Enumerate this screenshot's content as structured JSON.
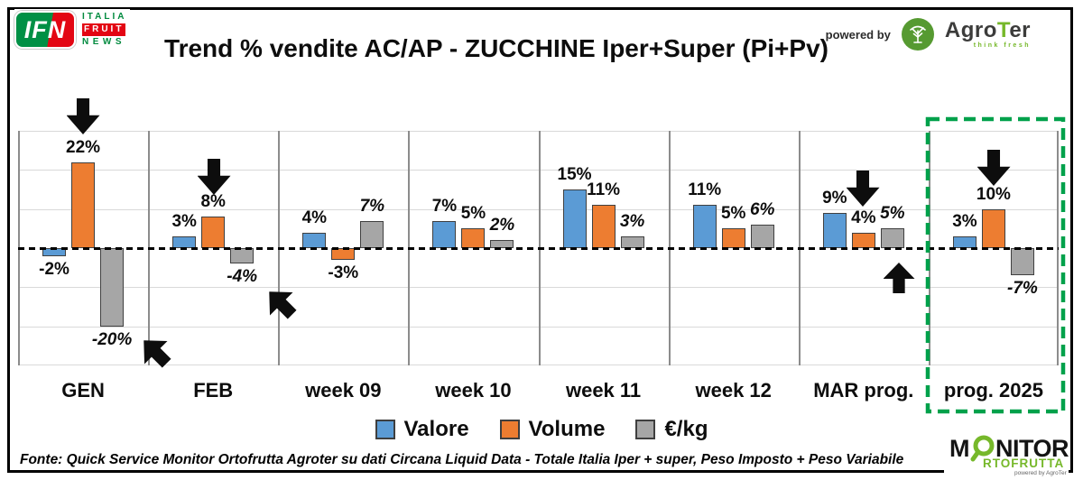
{
  "header": {
    "ifn_logo": {
      "abbr": "IFN",
      "word1": "ITALIA",
      "word2": "FRUIT",
      "word3": "NEWS"
    },
    "title": "Trend % vendite AC/AP - ZUCCHINE  Iper+Super (Pi+Pv)",
    "powered_by": "powered by",
    "agroter": {
      "part1": "Agro",
      "part2": "T",
      "part3": "er",
      "tagline": "think fresh"
    }
  },
  "chart_data": {
    "type": "bar",
    "title": "Trend % vendite AC/AP - ZUCCHINE  Iper+Super (Pi+Pv)",
    "unit": "%",
    "categories": [
      "GEN",
      "FEB",
      "week 09",
      "week 10",
      "week 11",
      "week 12",
      "MAR prog.",
      "prog. 2025"
    ],
    "series": [
      {
        "name": "Valore",
        "color": "#5B9BD5",
        "values": [
          -2,
          3,
          4,
          7,
          15,
          11,
          9,
          3
        ]
      },
      {
        "name": "Volume",
        "color": "#ED7D31",
        "values": [
          22,
          8,
          -3,
          5,
          11,
          5,
          4,
          10
        ]
      },
      {
        "name": "€/kg",
        "color": "#A6A6A6",
        "values": [
          -20,
          -4,
          7,
          2,
          3,
          6,
          5,
          -7
        ]
      }
    ],
    "ylim": [
      -30,
      30
    ],
    "grid_step": 10,
    "zero_line": "dashed-black",
    "grid": true,
    "legend_position": "bottom",
    "highlight": {
      "category": "prog. 2025",
      "group_index": 7,
      "style": "green-dashed-box",
      "color": "#00A14B"
    },
    "annotations": [
      {
        "icon": "arrow-down",
        "dir": "down",
        "cx": 92,
        "top": 109
      },
      {
        "icon": "arrow-down",
        "dir": "down",
        "cx": 237,
        "top": 176
      },
      {
        "icon": "arrow-up-left",
        "dir": "up-left",
        "cx": 172,
        "cy": 390
      },
      {
        "icon": "arrow-up-left",
        "dir": "up-left",
        "cx": 311,
        "cy": 336
      },
      {
        "icon": "arrow-down",
        "dir": "down",
        "cx": 956,
        "top": 189
      },
      {
        "icon": "arrow-up",
        "dir": "up",
        "cx": 996,
        "top": 291
      },
      {
        "icon": "arrow-down",
        "dir": "down",
        "cx": 1101,
        "top": 166
      }
    ]
  },
  "footer": {
    "text": "Fonte: Quick Service Monitor Ortofrutta Agroter su dati Circana Liquid Data - Totale Italia Iper + super, Peso Imposto + Peso Variabile"
  },
  "monitor_logo": {
    "m": "M",
    "nitor": "NITOR",
    "row2": "RTOFRUTTA",
    "powered": "powered by AgroTer"
  }
}
